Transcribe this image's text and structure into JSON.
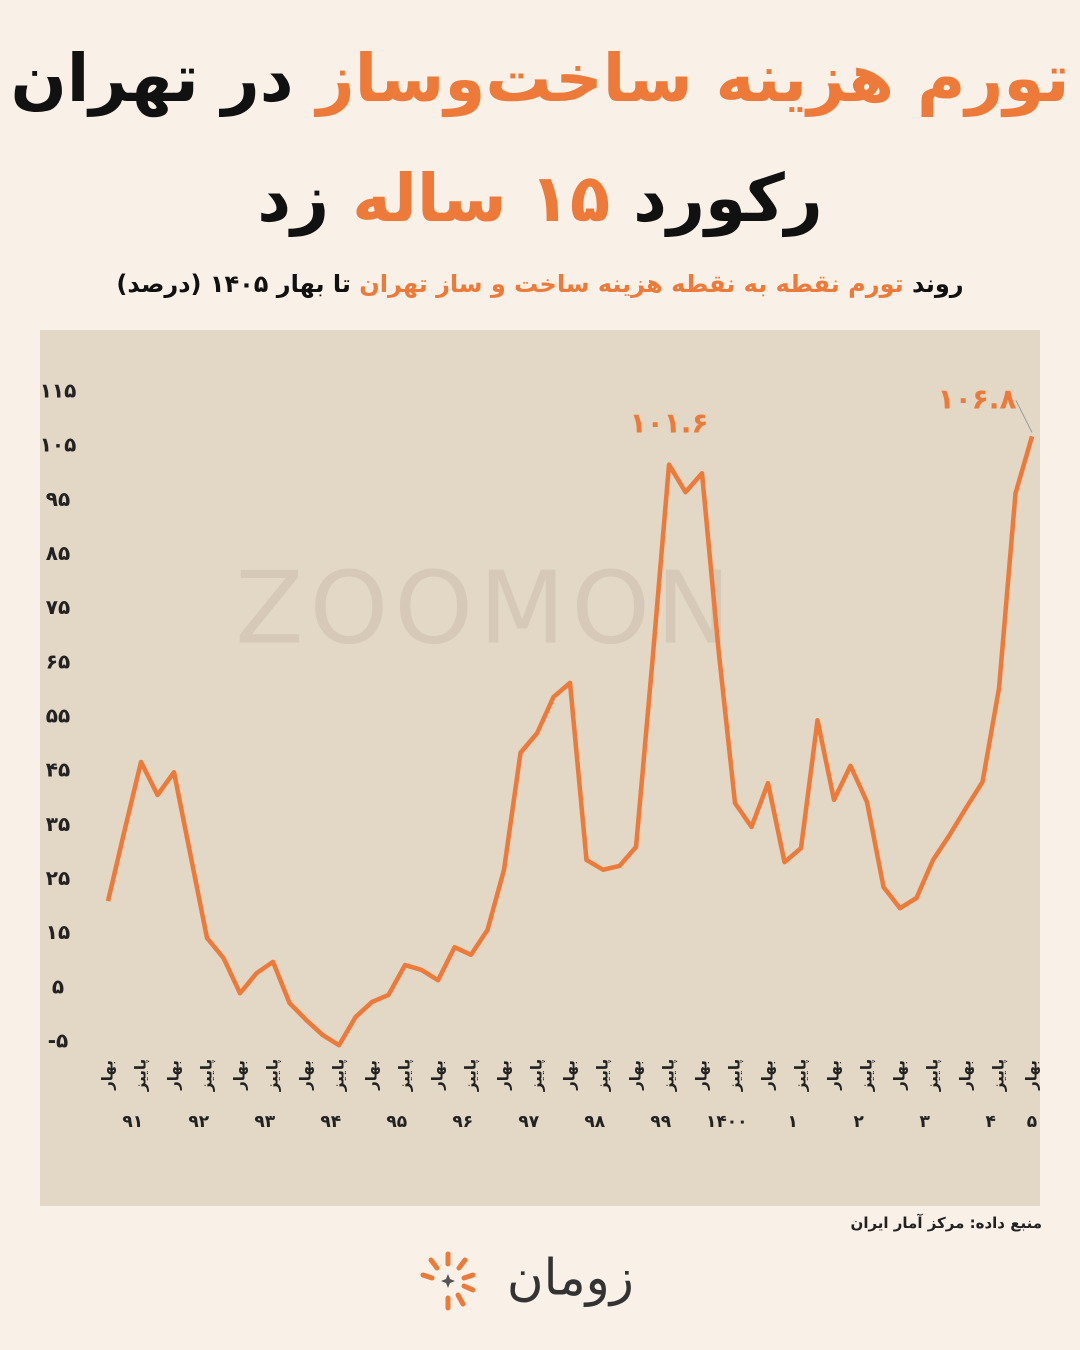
{
  "chart_data": {
    "type": "line",
    "title_lines": [
      [
        {
          "text": "تورم هزینه ساخت‌وساز",
          "color": "#ee7a3a"
        },
        {
          "text": "در تهران",
          "color": "#111111"
        }
      ],
      [
        {
          "text": "رکورد",
          "color": "#111111"
        },
        {
          "text": "۱۵ ساله",
          "color": "#ee7a3a"
        },
        {
          "text": "زد",
          "color": "#111111"
        }
      ]
    ],
    "subtitle": [
      {
        "text": "روند",
        "color": "#111111"
      },
      {
        "text": "تورم نقطه به نقطه هزینه ساخت و ساز تهران",
        "color": "#ee7a3a"
      },
      {
        "text": "تا بهار ۱۴۰۵ (درصد)",
        "color": "#111111"
      }
    ],
    "categories": [
      "بهار",
      null,
      "پاییز",
      null,
      "بهار",
      null,
      "پاییز",
      null,
      "بهار",
      null,
      "پاییز",
      null,
      "بهار",
      null,
      "پاییز",
      null,
      "بهار",
      null,
      "پاییز",
      null,
      "بهار",
      null,
      "پاییز",
      null,
      "بهار",
      null,
      "پاییز",
      null,
      "بهار",
      null,
      "پاییز",
      null,
      "بهار",
      null,
      "پاییز",
      null,
      "بهار",
      null,
      "پاییز",
      null,
      "بهار",
      null,
      "پاییز",
      null,
      "بهار",
      null,
      "پاییز",
      null,
      "بهار",
      null,
      "پاییز",
      null,
      "بهار",
      null,
      "پاییز",
      null,
      "بهار"
    ],
    "year_labels": [
      "۹۱",
      "۹۲",
      "۹۳",
      "۹۴",
      "۹۵",
      "۹۶",
      "۹۷",
      "۹۸",
      "۹۹",
      "۱۴۰۰",
      "۱",
      "۲",
      "۳",
      "۴",
      "۵"
    ],
    "color": "#ee7a3a",
    "values": [
      21,
      34,
      46.7,
      40.6,
      44.8,
      29.5,
      14.2,
      10.5,
      4,
      7.7,
      9.8,
      2.2,
      -0.9,
      -3.7,
      -5.6,
      -0.4,
      2.4,
      3.7,
      9.2,
      8.3,
      6.4,
      12.5,
      11.1,
      15.7,
      26.8,
      48.4,
      52,
      58.7,
      61.3,
      28.6,
      26.8,
      27.5,
      31,
      65.5,
      101.6,
      96.5,
      100,
      67.4,
      39.1,
      34.7,
      42.8,
      28.2,
      30.8,
      54.4,
      39.7,
      46,
      39.3,
      23.6,
      19.7,
      21.6,
      28.6,
      33.2,
      38.2,
      43,
      60.3,
      96.3,
      106.8
    ],
    "value_labels": [
      null,
      null,
      null,
      null,
      null,
      null,
      null,
      null,
      null,
      null,
      null,
      null,
      null,
      null,
      null,
      null,
      null,
      null,
      null,
      null,
      null,
      null,
      null,
      null,
      null,
      null,
      null,
      null,
      null,
      null,
      null,
      null,
      null,
      null,
      "۱۰۱.۶",
      null,
      null,
      null,
      null,
      null,
      null,
      null,
      null,
      null,
      null,
      null,
      null,
      null,
      null,
      null,
      null,
      null,
      null,
      null,
      null,
      null,
      "۱۰۶.۸"
    ],
    "ylim": [
      -5,
      115
    ],
    "yticks": [
      {
        "value": -5,
        "label": "-۵"
      },
      {
        "value": 5,
        "label": "۵"
      },
      {
        "value": 15,
        "label": "۱۵"
      },
      {
        "value": 25,
        "label": "۲۵"
      },
      {
        "value": 35,
        "label": "۳۵"
      },
      {
        "value": 45,
        "label": "۴۵"
      },
      {
        "value": 55,
        "label": "۵۵"
      },
      {
        "value": 65,
        "label": "۶۵"
      },
      {
        "value": 75,
        "label": "۷۵"
      },
      {
        "value": 85,
        "label": "۸۵"
      },
      {
        "value": 95,
        "label": "۹۵"
      },
      {
        "value": 105,
        "label": "۱۰۵"
      },
      {
        "value": 115,
        "label": "۱۱۵"
      }
    ],
    "grid": false,
    "watermark": "ZOOMON",
    "source": "منبع داده: مرکز آمار ایران",
    "logo": "زومان"
  }
}
